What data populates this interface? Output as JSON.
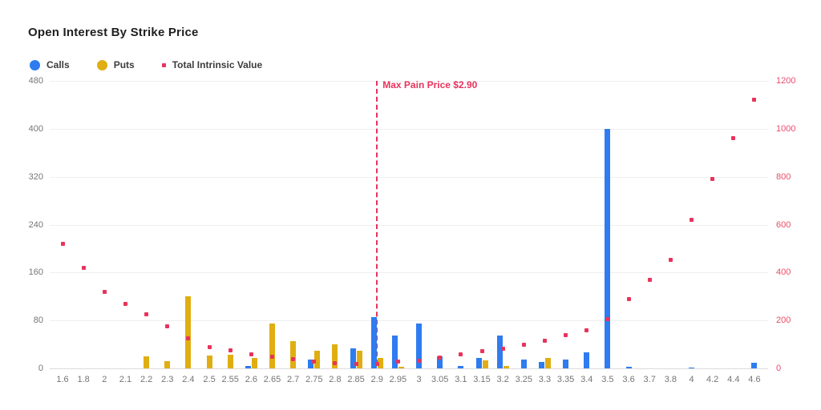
{
  "page": {
    "title": "Open Interest By Strike Price"
  },
  "legend": {
    "items": [
      {
        "label": "Calls",
        "color": "#2e7cf0",
        "marker": "circle"
      },
      {
        "label": "Puts",
        "color": "#e0ae12",
        "marker": "circle"
      },
      {
        "label": "Total Intrinsic Value",
        "color": "#e8335c",
        "marker": "square"
      }
    ]
  },
  "chart_data": {
    "type": "combo",
    "title": "Open Interest By Strike Price",
    "xlabel": "",
    "ylabel_left": "",
    "ylabel_right": "",
    "grid": true,
    "legend_position": "top-left",
    "categories": [
      "1.6",
      "1.8",
      "2",
      "2.1",
      "2.2",
      "2.3",
      "2.4",
      "2.5",
      "2.55",
      "2.6",
      "2.65",
      "2.7",
      "2.75",
      "2.8",
      "2.85",
      "2.9",
      "2.95",
      "3",
      "3.05",
      "3.1",
      "3.15",
      "3.2",
      "3.25",
      "3.3",
      "3.35",
      "3.4",
      "3.5",
      "3.6",
      "3.7",
      "3.8",
      "4",
      "4.2",
      "4.4",
      "4.6"
    ],
    "series": [
      {
        "name": "Calls",
        "type": "bar",
        "axis": "left",
        "color": "#2e7cf0",
        "values": [
          0,
          0,
          0,
          0,
          0,
          0,
          0,
          0,
          0,
          4,
          0,
          0,
          15,
          0,
          34,
          85,
          55,
          75,
          20,
          4,
          18,
          55,
          15,
          11,
          15,
          27,
          400,
          3,
          0,
          0,
          2,
          0,
          0,
          10
        ]
      },
      {
        "name": "Puts",
        "type": "bar",
        "axis": "left",
        "color": "#e0ae12",
        "values": [
          0,
          0,
          0,
          0,
          20,
          12,
          120,
          21,
          23,
          17,
          75,
          45,
          30,
          40,
          30,
          18,
          3,
          0,
          0,
          0,
          14,
          4,
          0,
          18,
          0,
          0,
          0,
          0,
          0,
          0,
          0,
          0,
          0,
          0
        ]
      },
      {
        "name": "Total Intrinsic Value",
        "type": "scatter",
        "axis": "right",
        "color": "#e8335c",
        "values": [
          520,
          420,
          320,
          270,
          225,
          175,
          125,
          90,
          75,
          60,
          48,
          38,
          27,
          22,
          18,
          17,
          27,
          31,
          44,
          58,
          72,
          82,
          100,
          115,
          140,
          158,
          204,
          290,
          370,
          453,
          620,
          790,
          960,
          1120
        ]
      }
    ],
    "left_axis": {
      "ticks": [
        0,
        80,
        160,
        240,
        320,
        400,
        480
      ],
      "range": [
        0,
        480
      ],
      "color": "#757575"
    },
    "right_axis": {
      "ticks": [
        0,
        200,
        400,
        600,
        800,
        1000,
        1200
      ],
      "range": [
        0,
        1200
      ],
      "color": "#e74c6e"
    },
    "annotation": {
      "label": "Max Pain Price $2.90",
      "category": "2.9",
      "color": "#e8335c"
    }
  }
}
